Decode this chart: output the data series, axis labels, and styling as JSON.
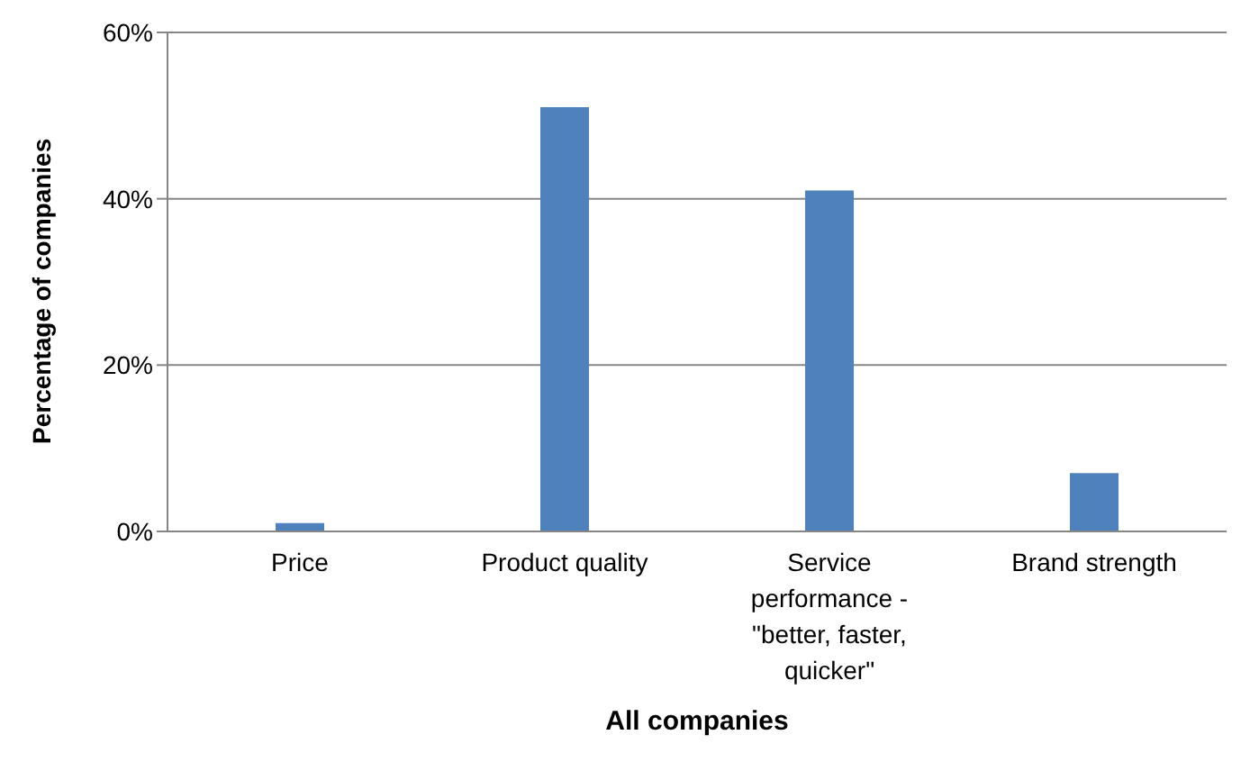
{
  "chart_data": {
    "type": "bar",
    "xlabel": "All companies",
    "ylabel": "Percentage of companies",
    "categories": [
      "Price",
      "Product quality",
      "Service performance - \"better, faster, quicker\"",
      "Brand strength"
    ],
    "values": [
      1,
      51,
      41,
      7
    ],
    "color": "#4f81bd",
    "ylim": [
      0,
      60
    ],
    "yticks": [
      {
        "value": 0,
        "label": "0%"
      },
      {
        "value": 20,
        "label": "20%"
      },
      {
        "value": 40,
        "label": "40%"
      },
      {
        "value": 60,
        "label": "60%"
      }
    ],
    "grid": "y",
    "legend": false
  }
}
